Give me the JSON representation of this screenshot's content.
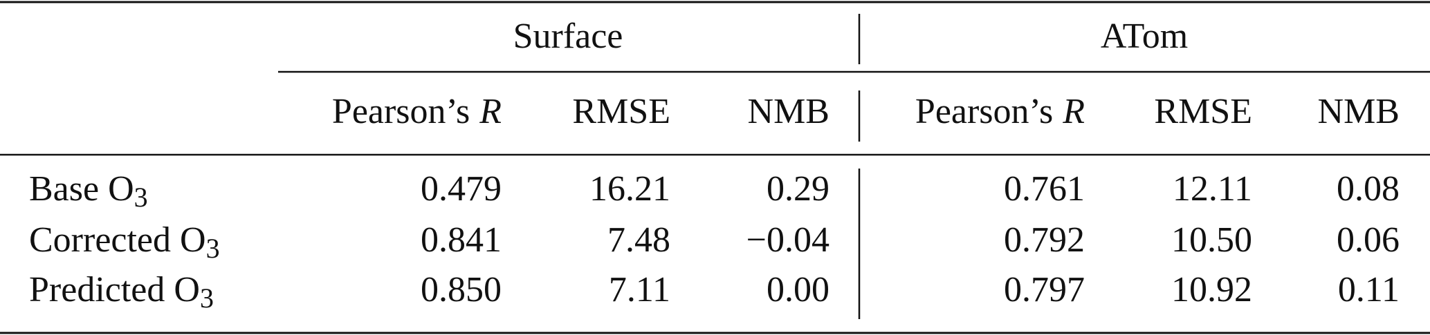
{
  "table": {
    "groups": [
      "Surface",
      "ATom"
    ],
    "columns": [
      {
        "label": "Pearson’s",
        "symbol": "R"
      },
      {
        "label": "RMSE"
      },
      {
        "label": "NMB"
      },
      {
        "label": "Pearson’s",
        "symbol": "R"
      },
      {
        "label": "RMSE"
      },
      {
        "label": "NMB"
      }
    ],
    "rows": [
      {
        "label": "Base O",
        "subscript": "3",
        "cells": [
          "0.479",
          "16.21",
          "0.29",
          "0.761",
          "12.11",
          "0.08"
        ]
      },
      {
        "label": "Corrected O",
        "subscript": "3",
        "cells": [
          "0.841",
          "7.48",
          "−0.04",
          "0.792",
          "10.50",
          "0.06"
        ]
      },
      {
        "label": "Predicted O",
        "subscript": "3",
        "cells": [
          "0.850",
          "7.11",
          "0.00",
          "0.797",
          "10.92",
          "0.11"
        ]
      }
    ]
  }
}
